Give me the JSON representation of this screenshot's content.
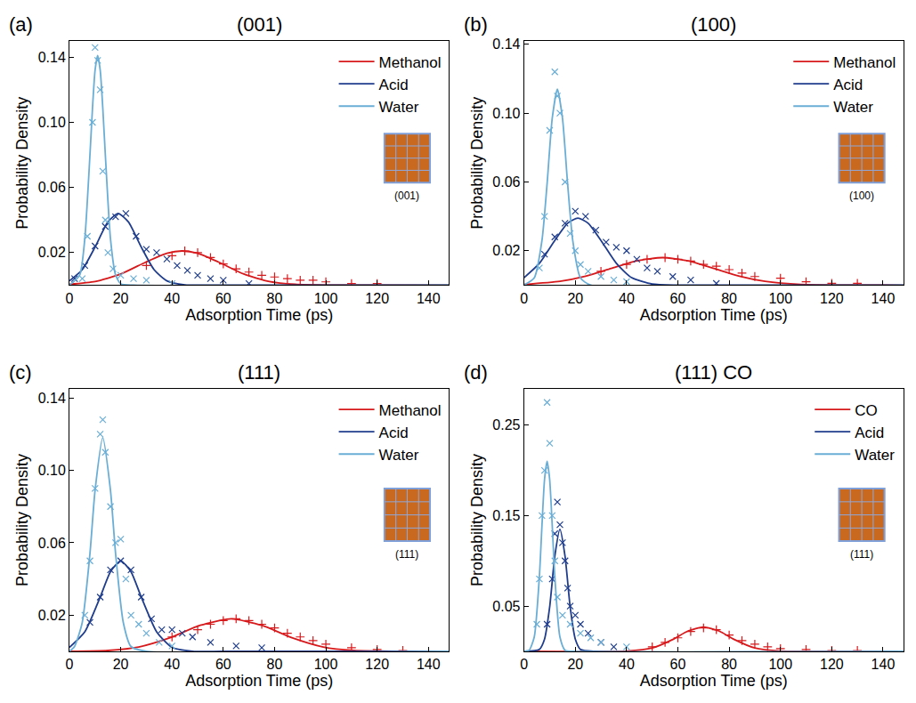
{
  "chart_data": [
    {
      "type": "scatter",
      "panel": "(a)",
      "title": "(001)",
      "inset_label": "(001)",
      "x_label": "Adsorption Time (ps)",
      "y_label": "Probability Density",
      "xlim": [
        0,
        148
      ],
      "xticks": [
        0,
        20,
        40,
        60,
        80,
        100,
        120,
        140
      ],
      "ylim": [
        0,
        0.15
      ],
      "yticks": [
        0.02,
        0.06,
        {
          "value": 0.1,
          "label": "0.10"
        },
        0.14
      ],
      "legend": "top right",
      "series": [
        {
          "name": "Methanol",
          "color": "#d7191c",
          "marker": "cross",
          "x": [
            30,
            40,
            45,
            50,
            55,
            60,
            65,
            70,
            75,
            80,
            85,
            90,
            95,
            100,
            110,
            120
          ],
          "values": [
            0.012,
            0.018,
            0.021,
            0.02,
            0.017,
            0.013,
            0.01,
            0.008,
            0.006,
            0.005,
            0.004,
            0.003,
            0.003,
            0.002,
            0.001,
            0.001
          ],
          "fit_x": [
            0,
            10,
            20,
            30,
            38,
            44,
            50,
            58,
            68,
            78,
            88,
            100,
            148
          ],
          "fit_values": [
            0.0005,
            0.0022,
            0.0068,
            0.0143,
            0.0196,
            0.021,
            0.0196,
            0.0143,
            0.0068,
            0.0022,
            0.0005,
            0,
            0
          ]
        },
        {
          "name": "Acid",
          "color": "#1f3d8c",
          "marker": "x",
          "x": [
            2,
            6,
            10,
            14,
            18,
            22,
            26,
            30,
            34,
            38,
            42,
            46,
            50,
            55,
            60,
            70
          ],
          "values": [
            0.004,
            0.012,
            0.024,
            0.036,
            0.042,
            0.044,
            0.03,
            0.022,
            0.02,
            0.016,
            0.012,
            0.009,
            0.006,
            0.004,
            0.003,
            0.001
          ],
          "fit_x": [
            0,
            5,
            10,
            15,
            19,
            23,
            28,
            33,
            38,
            45,
            55,
            148
          ],
          "fit_values": [
            0.0026,
            0.0095,
            0.0234,
            0.0388,
            0.044,
            0.0388,
            0.0234,
            0.0095,
            0.0026,
            0.0002,
            0,
            0
          ]
        },
        {
          "name": "Water",
          "color": "#6aaed6",
          "marker": "x",
          "x": [
            5,
            7,
            9,
            10,
            11,
            12,
            13,
            14,
            15,
            17,
            20,
            25,
            30,
            40
          ],
          "values": [
            0.004,
            0.03,
            0.1,
            0.146,
            0.138,
            0.12,
            0.07,
            0.04,
            0.02,
            0.01,
            0.006,
            0.004,
            0.003,
            0.001
          ],
          "fit_x": [
            0,
            4,
            6,
            8,
            9,
            10,
            11,
            12,
            13,
            14,
            16,
            18,
            20,
            25,
            148
          ],
          "fit_values": [
            0,
            0.0062,
            0.0286,
            0.08,
            0.109,
            0.132,
            0.141,
            0.132,
            0.109,
            0.08,
            0.0286,
            0.0062,
            0.0008,
            0,
            0
          ]
        }
      ]
    },
    {
      "type": "scatter",
      "panel": "(b)",
      "title": "(100)",
      "inset_label": "(100)",
      "x_label": "Adsorption Time (ps)",
      "y_label": "Probability Density",
      "xlim": [
        0,
        148
      ],
      "xticks": [
        0,
        20,
        40,
        60,
        80,
        100,
        120,
        140
      ],
      "ylim": [
        0,
        0.142
      ],
      "yticks": [
        0.02,
        0.06,
        {
          "value": 0.1,
          "label": "0.10"
        },
        0.14
      ],
      "legend": "top right",
      "series": [
        {
          "name": "Methanol",
          "color": "#d7191c",
          "marker": "cross",
          "x": [
            30,
            40,
            48,
            55,
            60,
            65,
            70,
            75,
            80,
            85,
            90,
            100,
            110,
            120,
            130
          ],
          "values": [
            0.008,
            0.012,
            0.015,
            0.016,
            0.015,
            0.014,
            0.012,
            0.011,
            0.009,
            0.007,
            0.005,
            0.004,
            0.002,
            0.001,
            0.001
          ],
          "fit_x": [
            0,
            14,
            24,
            34,
            44,
            54,
            64,
            74,
            84,
            94,
            108,
            125,
            148
          ],
          "fit_values": [
            0.0004,
            0.0022,
            0.0052,
            0.0097,
            0.0141,
            0.016,
            0.0141,
            0.0097,
            0.0052,
            0.0022,
            0.0004,
            0,
            0
          ]
        },
        {
          "name": "Acid",
          "color": "#1f3d8c",
          "marker": "x",
          "x": [
            8,
            12,
            16,
            20,
            24,
            28,
            32,
            36,
            40,
            44,
            48,
            52,
            58,
            65,
            75
          ],
          "values": [
            0.018,
            0.028,
            0.036,
            0.043,
            0.04,
            0.032,
            0.025,
            0.022,
            0.02,
            0.015,
            0.01,
            0.008,
            0.005,
            0.003,
            0.001
          ],
          "fit_x": [
            0,
            6,
            12,
            17,
            21,
            25,
            30,
            36,
            42,
            50,
            60,
            148
          ],
          "fit_values": [
            0.0043,
            0.0127,
            0.026,
            0.036,
            0.039,
            0.036,
            0.026,
            0.0127,
            0.0043,
            0.0006,
            0,
            0
          ]
        },
        {
          "name": "Water",
          "color": "#6aaed6",
          "marker": "x",
          "x": [
            6,
            8,
            10,
            12,
            13,
            14,
            16,
            18,
            20,
            22,
            25,
            30,
            35,
            40
          ],
          "values": [
            0.01,
            0.04,
            0.09,
            0.124,
            0.11,
            0.1,
            0.06,
            0.03,
            0.02,
            0.012,
            0.008,
            0.005,
            0.003,
            0.002
          ],
          "fit_x": [
            0,
            4,
            7,
            9,
            11,
            13,
            15,
            17,
            19,
            22,
            26,
            148
          ],
          "fit_values": [
            0,
            0.0042,
            0.026,
            0.059,
            0.097,
            0.114,
            0.097,
            0.059,
            0.026,
            0.0042,
            0,
            0
          ]
        }
      ]
    },
    {
      "type": "scatter",
      "panel": "(c)",
      "title": "(111)",
      "inset_label": "(111)",
      "x_label": "Adsorption Time (ps)",
      "y_label": "Probability Density",
      "xlim": [
        0,
        148
      ],
      "xticks": [
        0,
        20,
        40,
        60,
        80,
        100,
        120,
        140
      ],
      "ylim": [
        0,
        0.145
      ],
      "yticks": [
        0.02,
        0.06,
        {
          "value": 0.1,
          "label": "0.10"
        },
        0.14
      ],
      "legend": "top right",
      "series": [
        {
          "name": "Methanol",
          "color": "#d7191c",
          "marker": "cross",
          "x": [
            40,
            50,
            55,
            60,
            65,
            70,
            75,
            80,
            85,
            90,
            95,
            100,
            110,
            120,
            130
          ],
          "values": [
            0.008,
            0.012,
            0.015,
            0.017,
            0.018,
            0.017,
            0.015,
            0.013,
            0.01,
            0.008,
            0.006,
            0.004,
            0.002,
            0.001,
            0.0005
          ],
          "fit_x": [
            0,
            15,
            27,
            39,
            51,
            63,
            75,
            87,
            99,
            111,
            130,
            148
          ],
          "fit_values": [
            0,
            0.0005,
            0.0024,
            0.0074,
            0.0144,
            0.018,
            0.0144,
            0.0074,
            0.0024,
            0.0005,
            0,
            0
          ]
        },
        {
          "name": "Acid",
          "color": "#1f3d8c",
          "marker": "x",
          "x": [
            8,
            12,
            16,
            20,
            24,
            28,
            32,
            36,
            40,
            44,
            48,
            55,
            65,
            75
          ],
          "values": [
            0.016,
            0.03,
            0.045,
            0.05,
            0.045,
            0.03,
            0.018,
            0.012,
            0.012,
            0.01,
            0.008,
            0.005,
            0.003,
            0.002
          ],
          "fit_x": [
            0,
            6,
            12,
            16,
            20,
            24,
            28,
            34,
            40,
            48,
            60,
            148
          ],
          "fit_values": [
            0.0022,
            0.0108,
            0.03,
            0.044,
            0.05,
            0.044,
            0.03,
            0.0108,
            0.0022,
            0.0001,
            0,
            0
          ]
        },
        {
          "name": "Water",
          "color": "#6aaed6",
          "marker": "x",
          "x": [
            6,
            8,
            10,
            12,
            13,
            14,
            16,
            18,
            20,
            22,
            24,
            27,
            30,
            35,
            40
          ],
          "values": [
            0.02,
            0.05,
            0.09,
            0.12,
            0.128,
            0.11,
            0.08,
            0.06,
            0.062,
            0.04,
            0.02,
            0.015,
            0.01,
            0.005,
            0.003
          ],
          "fit_x": [
            0,
            2,
            5,
            8,
            10,
            13,
            16,
            18,
            21,
            24,
            30,
            148
          ],
          "fit_values": [
            0,
            0.0027,
            0.016,
            0.054,
            0.089,
            0.118,
            0.089,
            0.054,
            0.016,
            0.0027,
            0,
            0
          ]
        }
      ]
    },
    {
      "type": "scatter",
      "panel": "(d)",
      "title": "(111) CO",
      "inset_label": "(111)",
      "x_label": "Adsorption Time (ps)",
      "y_label": "Probability Density",
      "xlim": [
        0,
        148
      ],
      "xticks": [
        0,
        20,
        40,
        60,
        80,
        100,
        120,
        140
      ],
      "ylim": [
        0,
        0.29
      ],
      "yticks": [
        0.05,
        0.15,
        0.25
      ],
      "legend": "top right",
      "series": [
        {
          "name": "CO",
          "color": "#d7191c",
          "marker": "cross",
          "x": [
            50,
            55,
            60,
            65,
            70,
            75,
            80,
            85,
            90,
            95,
            100,
            110,
            120,
            130
          ],
          "values": [
            0.005,
            0.01,
            0.015,
            0.022,
            0.026,
            0.024,
            0.018,
            0.012,
            0.008,
            0.005,
            0.003,
            0.002,
            0.001,
            0.001
          ],
          "fit_x": [
            0,
            40,
            50,
            58,
            64,
            70,
            76,
            82,
            90,
            100,
            110,
            148
          ],
          "fit_values": [
            0,
            0.0003,
            0.0037,
            0.0131,
            0.0226,
            0.027,
            0.0226,
            0.0131,
            0.0037,
            0.0003,
            0,
            0
          ]
        },
        {
          "name": "Acid",
          "color": "#1f3d8c",
          "marker": "x",
          "x": [
            9,
            11,
            12,
            13,
            14,
            15,
            16,
            17,
            18,
            20,
            22,
            25,
            30,
            35
          ],
          "values": [
            0.03,
            0.08,
            0.13,
            0.165,
            0.14,
            0.12,
            0.1,
            0.07,
            0.05,
            0.04,
            0.03,
            0.02,
            0.01,
            0.005
          ],
          "fit_x": [
            0,
            6,
            8,
            10,
            12,
            14,
            16,
            18,
            20,
            22,
            28,
            148
          ],
          "fit_values": [
            0,
            0.0023,
            0.0136,
            0.049,
            0.105,
            0.135,
            0.105,
            0.049,
            0.0136,
            0.0023,
            0,
            0
          ]
        },
        {
          "name": "Water",
          "color": "#6aaed6",
          "marker": "x",
          "x": [
            5,
            6,
            7,
            8,
            9,
            10,
            11,
            12,
            13,
            15,
            18,
            22,
            26,
            30,
            40
          ],
          "values": [
            0.03,
            0.08,
            0.15,
            0.2,
            0.275,
            0.23,
            0.15,
            0.1,
            0.06,
            0.04,
            0.03,
            0.02,
            0.015,
            0.01,
            0.005
          ],
          "fit_x": [
            0,
            2,
            4,
            6,
            7,
            8,
            9,
            10,
            11,
            12,
            14,
            16,
            20,
            148
          ],
          "fit_values": [
            0,
            0.0013,
            0.016,
            0.083,
            0.139,
            0.19,
            0.21,
            0.19,
            0.139,
            0.083,
            0.016,
            0.0013,
            0,
            0
          ]
        }
      ]
    }
  ]
}
